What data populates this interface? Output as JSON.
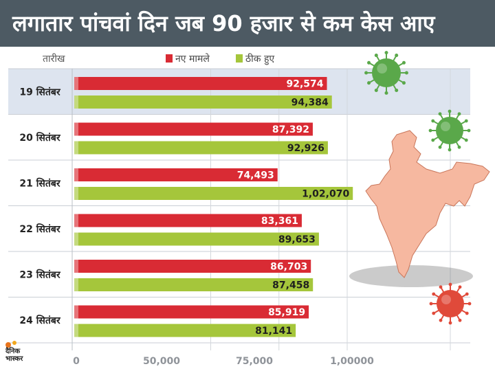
{
  "header": {
    "title": "लगातार पांचवां दिन जब 90 हजार से कम केस आए"
  },
  "legend": {
    "column_header": "तारीख",
    "series_labels": [
      "नए मामले",
      "ठीक हुए"
    ]
  },
  "logo": {
    "line1": "दैनिक",
    "line2": "भास्कर"
  },
  "colors": {
    "new_cases": "#d92b34",
    "recovered": "#a5c63b",
    "header_bg": "#4d5a63",
    "highlight_row": "#dde4ef",
    "map": "#f6b8a0",
    "virus_green": "#5aa84a",
    "virus_red": "#e04a3a"
  },
  "icons": [
    "virus-icon",
    "virus-icon",
    "virus-icon",
    "india-map"
  ],
  "chart_data": {
    "type": "bar",
    "orientation": "horizontal",
    "categories": [
      "19 सितंबर",
      "20 सितंबर",
      "21 सितंबर",
      "22 सितंबर",
      "23 सितंबर",
      "24 सितंबर"
    ],
    "series": [
      {
        "name": "नए मामले",
        "values": [
          92574,
          87392,
          74493,
          83361,
          86703,
          85919
        ],
        "labels": [
          "92,574",
          "87,392",
          "74,493",
          "83,361",
          "86,703",
          "85,919"
        ]
      },
      {
        "name": "ठीक हुए",
        "values": [
          94384,
          92926,
          102070,
          89653,
          87458,
          81141
        ],
        "labels": [
          "94,384",
          "92,926",
          "1,02,070",
          "89,653",
          "87,458",
          "81,141"
        ]
      }
    ],
    "x_ticks": [
      "0",
      "50,000",
      "75,000",
      "1,00000"
    ],
    "highlighted_category": "19 सितंबर",
    "grid": true,
    "legend_position": "top"
  }
}
